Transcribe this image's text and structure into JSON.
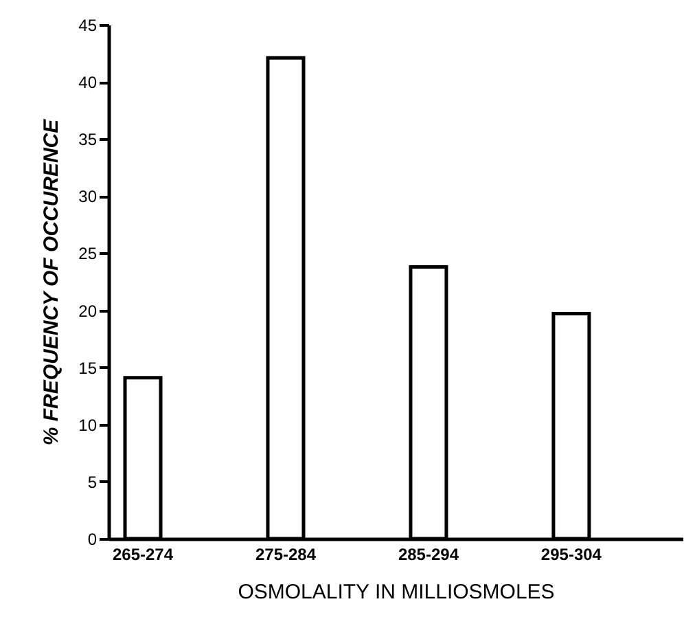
{
  "chart_data": {
    "type": "bar",
    "categories": [
      "265-274",
      "275-284",
      "285-294",
      "295-304"
    ],
    "values": [
      14.1,
      42.1,
      23.8,
      19.7
    ],
    "color": "#ffffff",
    "xlabel": "OSMOLALITY IN MILLIOSMOLES",
    "ylabel": "% FREQUENCY OF OCCURENCE",
    "ylim": [
      0,
      45
    ],
    "yticks": [
      0,
      5,
      10,
      15,
      20,
      25,
      30,
      35,
      40,
      45
    ],
    "grid": false
  }
}
